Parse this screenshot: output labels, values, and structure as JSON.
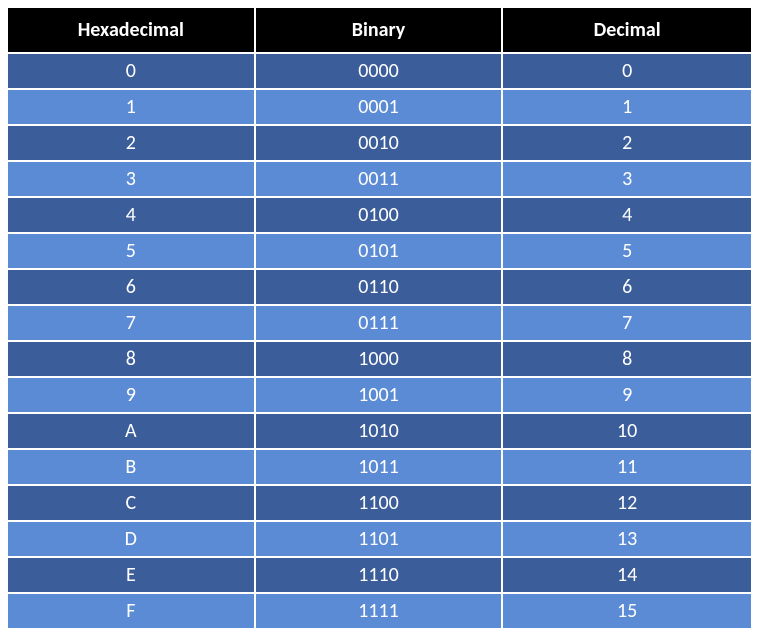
{
  "table": {
    "type": "table",
    "columns": [
      "Hexadecimal",
      "Binary",
      "Decimal"
    ],
    "rows": [
      [
        "0",
        "0000",
        "0"
      ],
      [
        "1",
        "0001",
        "1"
      ],
      [
        "2",
        "0010",
        "2"
      ],
      [
        "3",
        "0011",
        "3"
      ],
      [
        "4",
        "0100",
        "4"
      ],
      [
        "5",
        "0101",
        "5"
      ],
      [
        "6",
        "0110",
        "6"
      ],
      [
        "7",
        "0111",
        "7"
      ],
      [
        "8",
        "1000",
        "8"
      ],
      [
        "9",
        "1001",
        "9"
      ],
      [
        "A",
        "1010",
        "10"
      ],
      [
        "B",
        "1011",
        "11"
      ],
      [
        "C",
        "1100",
        "12"
      ],
      [
        "D",
        "1101",
        "13"
      ],
      [
        "E",
        "1110",
        "14"
      ],
      [
        "F",
        "1111",
        "15"
      ]
    ],
    "header_bg": "#000000",
    "header_text_color": "#ffffff",
    "header_fontsize": 20,
    "header_fontweight": "bold",
    "row_colors": [
      "#3b5d9a",
      "#5b8bd4"
    ],
    "cell_text_color": "#ffffff",
    "cell_fontsize": 20,
    "border_color": "#ffffff",
    "border_width": 2,
    "column_widths": [
      "33.33%",
      "33.33%",
      "33.33%"
    ],
    "text_align": "center"
  }
}
